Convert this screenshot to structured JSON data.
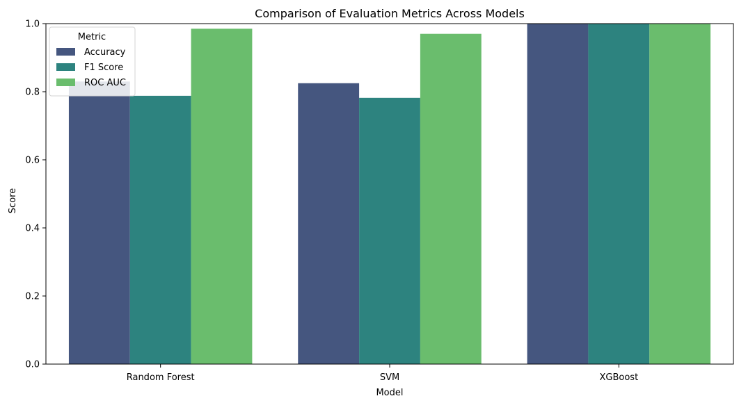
{
  "chart_data": {
    "type": "bar",
    "title": "Comparison of Evaluation Metrics Across Models",
    "xlabel": "Model",
    "ylabel": "Score",
    "ylim": [
      0,
      1.0
    ],
    "yticks": [
      "0.0",
      "0.2",
      "0.4",
      "0.6",
      "0.8",
      "1.0"
    ],
    "categories": [
      "Random Forest",
      "SVM",
      "XGBoost"
    ],
    "series": [
      {
        "name": "Accuracy",
        "color": "#45567f",
        "values": [
          0.83,
          0.825,
          1.0
        ]
      },
      {
        "name": "F1 Score",
        "color": "#2d837f",
        "values": [
          0.788,
          0.782,
          1.0
        ]
      },
      {
        "name": "ROC AUC",
        "color": "#6abd6d",
        "values": [
          0.985,
          0.97,
          1.0
        ]
      }
    ],
    "legend": {
      "title": "Metric",
      "placement": "top-left"
    },
    "grid": false
  }
}
